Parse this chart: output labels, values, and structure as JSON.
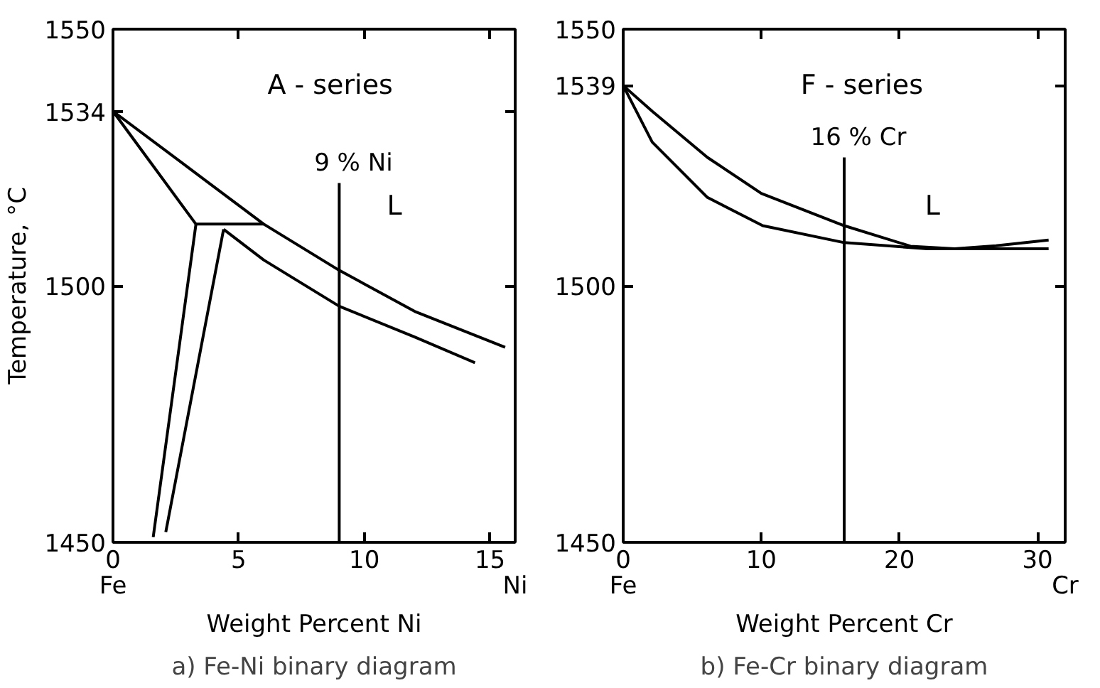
{
  "chart_data": [
    {
      "type": "line",
      "title": "a) Fe-Ni binary diagram",
      "xlabel": "Weight Percent Ni",
      "ylabel": "Temperature, °C",
      "xlim": [
        0,
        16
      ],
      "ylim": [
        1450,
        1550
      ],
      "xticks": [
        0,
        5,
        10,
        15
      ],
      "yticks": [
        1450,
        1500,
        1534,
        1550
      ],
      "series": [
        {
          "color": "#000000",
          "x": [
            0,
            3,
            6,
            9,
            12,
            15.6
          ],
          "values": [
            1534,
            1523,
            1512,
            1503,
            1495,
            1488
          ]
        },
        {
          "color": "#000000",
          "x": [
            0,
            1.5,
            3.3
          ],
          "values": [
            1534,
            1524,
            1512
          ]
        },
        {
          "color": "#000000",
          "x": [
            3.3,
            6
          ],
          "values": [
            1512,
            1512
          ]
        },
        {
          "color": "#000000",
          "x": [
            4.4,
            6,
            9,
            12,
            14.4
          ],
          "values": [
            1511,
            1505,
            1496,
            1490,
            1485
          ]
        },
        {
          "color": "#000000",
          "x": [
            3.3,
            1.6
          ],
          "values": [
            1512,
            1451
          ]
        },
        {
          "color": "#000000",
          "x": [
            4.4,
            2.1
          ],
          "values": [
            1511,
            1452
          ]
        },
        {
          "name": "9 % Ni",
          "color": "#000000",
          "x": [
            9,
            9
          ],
          "values": [
            1450,
            1520
          ]
        }
      ],
      "annotations": [
        "A - series",
        "L",
        "Fe",
        "Ni"
      ]
    },
    {
      "type": "line",
      "title": "b) Fe-Cr binary diagram",
      "xlabel": "Weight Percent Cr",
      "xlim": [
        0,
        32
      ],
      "ylim": [
        1450,
        1550
      ],
      "xticks": [
        0,
        10,
        20,
        30
      ],
      "yticks": [
        1450,
        1500,
        1539,
        1550
      ],
      "series": [
        {
          "color": "#000000",
          "x": [
            0,
            2.1,
            6.1,
            10,
            16,
            20.8,
            24,
            27,
            30.8
          ],
          "values": [
            1539,
            1534,
            1525,
            1518,
            1511.7,
            1507.7,
            1507.2,
            1507.8,
            1508.9
          ]
        },
        {
          "color": "#000000",
          "x": [
            0,
            2.1,
            6.1,
            10.1,
            16,
            22,
            26,
            30.8
          ],
          "values": [
            1539,
            1528,
            1517.2,
            1511.7,
            1508.4,
            1507.2,
            1507.2,
            1507.2
          ]
        },
        {
          "name": "16 % Cr",
          "color": "#000000",
          "x": [
            16,
            16
          ],
          "values": [
            1450,
            1525
          ]
        }
      ],
      "annotations": [
        "F - series",
        "L",
        "Fe",
        "Cr"
      ]
    }
  ]
}
